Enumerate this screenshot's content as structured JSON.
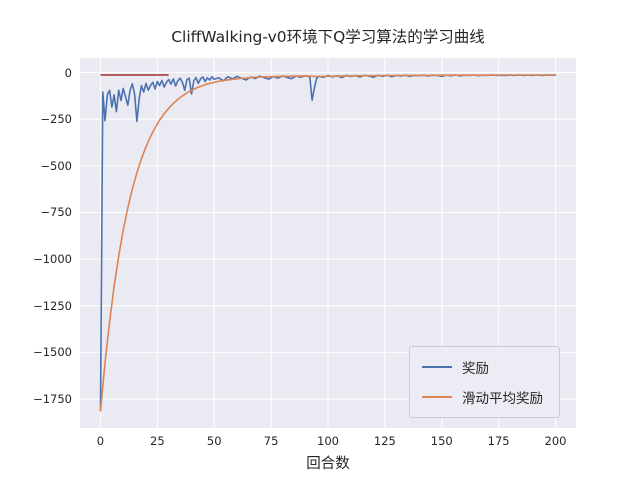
{
  "chart_data": {
    "type": "line",
    "title": "CliffWalking-v0环境下Q学习算法的学习曲线",
    "xlabel": "回合数",
    "ylabel": "",
    "xlim": [
      -9,
      209
    ],
    "ylim": [
      -1905,
      78
    ],
    "xticks": [
      0,
      25,
      50,
      75,
      100,
      125,
      150,
      175,
      200
    ],
    "yticks": [
      0,
      -250,
      -500,
      -750,
      -1000,
      -1250,
      -1500,
      -1750
    ],
    "grid": true,
    "background": "#eaeaf2",
    "grid_color": "#ffffff",
    "legend_position": "lower right",
    "reference_segment": {
      "name": "red-reference-segment",
      "color": "#9e2f2f",
      "points": [
        [
          0,
          -13
        ],
        [
          30,
          -13
        ]
      ]
    },
    "series": [
      {
        "name": "奖励",
        "color": "#4c72b0",
        "points": [
          [
            0,
            -1812
          ],
          [
            1,
            -105
          ],
          [
            2,
            -258
          ],
          [
            3,
            -120
          ],
          [
            4,
            -95
          ],
          [
            5,
            -185
          ],
          [
            6,
            -120
          ],
          [
            7,
            -210
          ],
          [
            8,
            -95
          ],
          [
            9,
            -150
          ],
          [
            10,
            -85
          ],
          [
            11,
            -130
          ],
          [
            12,
            -175
          ],
          [
            13,
            -95
          ],
          [
            14,
            -60
          ],
          [
            15,
            -115
          ],
          [
            16,
            -262
          ],
          [
            17,
            -140
          ],
          [
            18,
            -70
          ],
          [
            19,
            -105
          ],
          [
            20,
            -58
          ],
          [
            21,
            -95
          ],
          [
            22,
            -70
          ],
          [
            23,
            -52
          ],
          [
            24,
            -88
          ],
          [
            25,
            -48
          ],
          [
            26,
            -70
          ],
          [
            27,
            -42
          ],
          [
            28,
            -78
          ],
          [
            29,
            -52
          ],
          [
            30,
            -38
          ],
          [
            31,
            -62
          ],
          [
            32,
            -34
          ],
          [
            33,
            -72
          ],
          [
            34,
            -44
          ],
          [
            35,
            -30
          ],
          [
            36,
            -52
          ],
          [
            37,
            -95
          ],
          [
            38,
            -38
          ],
          [
            39,
            -30
          ],
          [
            40,
            -115
          ],
          [
            41,
            -44
          ],
          [
            42,
            -27
          ],
          [
            43,
            -58
          ],
          [
            44,
            -33
          ],
          [
            45,
            -24
          ],
          [
            46,
            -48
          ],
          [
            47,
            -28
          ],
          [
            48,
            -40
          ],
          [
            49,
            -23
          ],
          [
            50,
            -36
          ],
          [
            52,
            -28
          ],
          [
            54,
            -44
          ],
          [
            56,
            -22
          ],
          [
            58,
            -34
          ],
          [
            60,
            -20
          ],
          [
            62,
            -30
          ],
          [
            64,
            -40
          ],
          [
            66,
            -24
          ],
          [
            68,
            -32
          ],
          [
            70,
            -19
          ],
          [
            72,
            -28
          ],
          [
            74,
            -35
          ],
          [
            76,
            -21
          ],
          [
            78,
            -30
          ],
          [
            80,
            -18
          ],
          [
            82,
            -26
          ],
          [
            84,
            -33
          ],
          [
            86,
            -19
          ],
          [
            88,
            -25
          ],
          [
            90,
            -17
          ],
          [
            92,
            -24
          ],
          [
            93,
            -148
          ],
          [
            94,
            -85
          ],
          [
            95,
            -30
          ],
          [
            96,
            -20
          ],
          [
            98,
            -26
          ],
          [
            100,
            -16
          ],
          [
            102,
            -23
          ],
          [
            104,
            -17
          ],
          [
            106,
            -27
          ],
          [
            108,
            -15
          ],
          [
            110,
            -21
          ],
          [
            112,
            -16
          ],
          [
            114,
            -24
          ],
          [
            116,
            -15
          ],
          [
            118,
            -19
          ],
          [
            120,
            -25
          ],
          [
            122,
            -15
          ],
          [
            124,
            -20
          ],
          [
            126,
            -14
          ],
          [
            128,
            -22
          ],
          [
            130,
            -15
          ],
          [
            132,
            -18
          ],
          [
            134,
            -14
          ],
          [
            136,
            -20
          ],
          [
            138,
            -15
          ],
          [
            140,
            -17
          ],
          [
            142,
            -14
          ],
          [
            144,
            -19
          ],
          [
            146,
            -14
          ],
          [
            148,
            -16
          ],
          [
            150,
            -20
          ],
          [
            152,
            -14
          ],
          [
            154,
            -17
          ],
          [
            156,
            -13
          ],
          [
            158,
            -18
          ],
          [
            160,
            -14
          ],
          [
            162,
            -16
          ],
          [
            164,
            -13
          ],
          [
            166,
            -17
          ],
          [
            168,
            -14
          ],
          [
            170,
            -15
          ],
          [
            172,
            -13
          ],
          [
            174,
            -16
          ],
          [
            176,
            -14
          ],
          [
            178,
            -15
          ],
          [
            180,
            -13
          ],
          [
            182,
            -16
          ],
          [
            184,
            -13
          ],
          [
            186,
            -15
          ],
          [
            188,
            -13
          ],
          [
            190,
            -16
          ],
          [
            192,
            -13
          ],
          [
            194,
            -15
          ],
          [
            196,
            -13
          ],
          [
            198,
            -14
          ],
          [
            200,
            -14
          ]
        ]
      },
      {
        "name": "滑动平均奖励",
        "color": "#dd8452",
        "points": [
          [
            0,
            -1812
          ],
          [
            2,
            -1556
          ],
          [
            4,
            -1336
          ],
          [
            6,
            -1146
          ],
          [
            8,
            -984
          ],
          [
            10,
            -845
          ],
          [
            12,
            -726
          ],
          [
            14,
            -624
          ],
          [
            16,
            -537
          ],
          [
            18,
            -462
          ],
          [
            20,
            -398
          ],
          [
            22,
            -343
          ],
          [
            24,
            -296
          ],
          [
            26,
            -255
          ],
          [
            28,
            -221
          ],
          [
            30,
            -191
          ],
          [
            32,
            -166
          ],
          [
            34,
            -144
          ],
          [
            36,
            -125
          ],
          [
            38,
            -109
          ],
          [
            40,
            -95
          ],
          [
            43,
            -78
          ],
          [
            46,
            -65
          ],
          [
            49,
            -55
          ],
          [
            52,
            -47
          ],
          [
            55,
            -41
          ],
          [
            58,
            -36
          ],
          [
            61,
            -32
          ],
          [
            64,
            -29
          ],
          [
            67,
            -26
          ],
          [
            70,
            -24
          ],
          [
            75,
            -22
          ],
          [
            80,
            -20
          ],
          [
            85,
            -19
          ],
          [
            90,
            -18
          ],
          [
            95,
            -21
          ],
          [
            100,
            -20
          ],
          [
            105,
            -19
          ],
          [
            110,
            -18
          ],
          [
            115,
            -17
          ],
          [
            120,
            -17
          ],
          [
            125,
            -16
          ],
          [
            130,
            -16
          ],
          [
            135,
            -15
          ],
          [
            140,
            -15
          ],
          [
            145,
            -15
          ],
          [
            150,
            -14
          ],
          [
            155,
            -14
          ],
          [
            160,
            -14
          ],
          [
            165,
            -14
          ],
          [
            170,
            -14
          ],
          [
            175,
            -13
          ],
          [
            180,
            -13
          ],
          [
            185,
            -13
          ],
          [
            190,
            -13
          ],
          [
            195,
            -13
          ],
          [
            200,
            -13
          ]
        ]
      }
    ]
  }
}
